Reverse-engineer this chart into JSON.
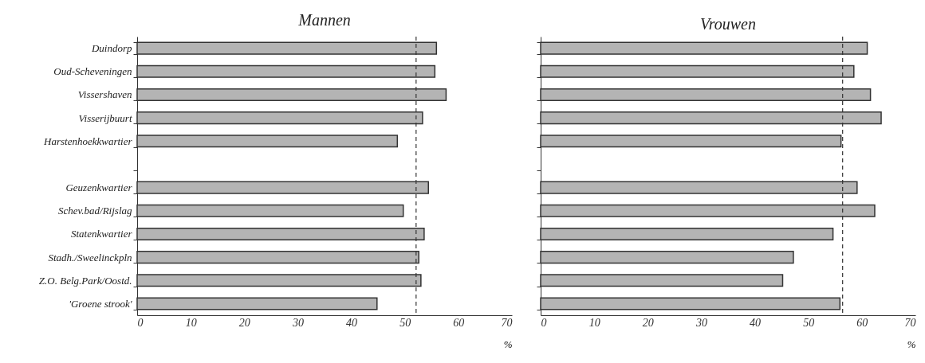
{
  "chart_data": [
    {
      "type": "bar",
      "orientation": "horizontal",
      "title": "Mannen",
      "xlabel": "%",
      "categories": [
        "Duindorp",
        "Oud-Scheveningen",
        "Vissershaven",
        "Visserijbuurt",
        "Harstenhoekkwartier",
        null,
        "Geuzenkwartier",
        "Schev.bad/Rijslag",
        "Statenkwartier",
        "Stadh./Sweelinckpln",
        "Z.O. Belg.Park/Oostd.",
        "'Groene strook'"
      ],
      "values": [
        55.9,
        55.6,
        57.7,
        53.3,
        48.6,
        null,
        54.4,
        49.7,
        53.6,
        52.6,
        53.0,
        44.8
      ],
      "color": "#b4b4b4",
      "xlim": [
        0,
        70
      ],
      "xticks": [
        0,
        10,
        20,
        30,
        40,
        50,
        60,
        70
      ],
      "ref_lines": [
        {
          "axis": "x",
          "value": 52.1,
          "line_style": "dashed",
          "color": "#333333"
        }
      ]
    },
    {
      "type": "bar",
      "orientation": "horizontal",
      "title": "Vrouwen",
      "xlabel": "%",
      "tick_labels": "x",
      "categories": [
        null,
        null,
        null,
        null,
        null,
        null,
        null,
        null,
        null,
        null,
        null,
        null
      ],
      "values": [
        61.0,
        58.5,
        61.6,
        63.6,
        56.1,
        null,
        59.1,
        62.4,
        54.6,
        47.2,
        45.2,
        55.9
      ],
      "color": "#b4b4b4",
      "xlim": [
        0,
        70
      ],
      "xticks": [
        0,
        10,
        20,
        30,
        40,
        50,
        60,
        70
      ],
      "ref_lines": [
        {
          "axis": "x",
          "value": 56.4,
          "line_style": "dashed",
          "color": "#333333"
        }
      ]
    }
  ]
}
